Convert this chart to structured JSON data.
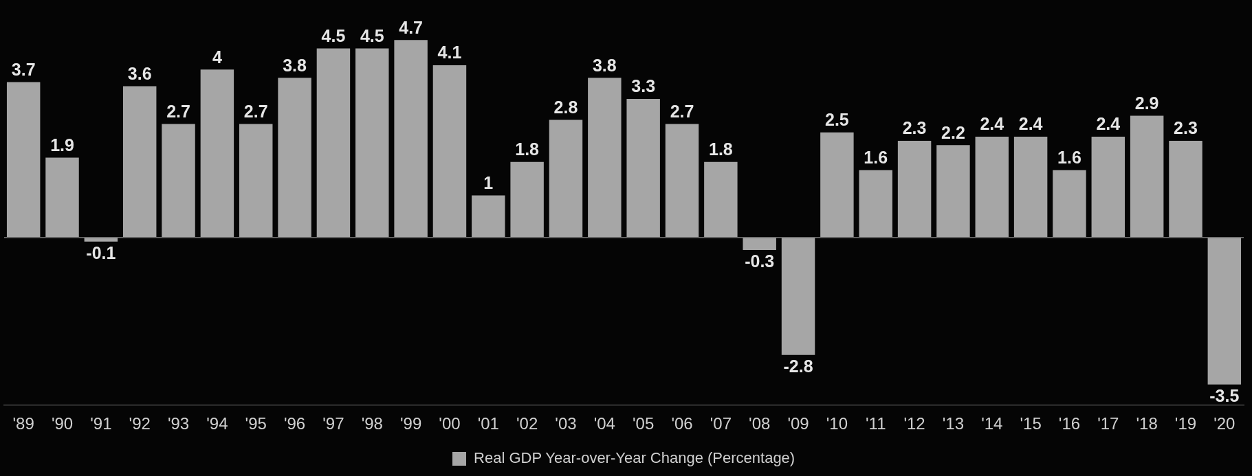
{
  "chart_data": {
    "type": "bar",
    "categories": [
      "'89",
      "'90",
      "'91",
      "'92",
      "'93",
      "'94",
      "'95",
      "'96",
      "'97",
      "'98",
      "'99",
      "'00",
      "'01",
      "'02",
      "'03",
      "'04",
      "'05",
      "'06",
      "'07",
      "'08",
      "'09",
      "'10",
      "'11",
      "'12",
      "'13",
      "'14",
      "'15",
      "'16",
      "'17",
      "'18",
      "'19",
      "'20"
    ],
    "series": [
      {
        "name": "Real GDP Year-over-Year Change (Percentage)",
        "color": "#a6a6a6",
        "values": [
          3.7,
          1.9,
          -0.1,
          3.6,
          2.7,
          4,
          2.7,
          3.8,
          4.5,
          4.5,
          4.7,
          4.1,
          1,
          1.8,
          2.8,
          3.8,
          3.3,
          2.7,
          1.8,
          -0.3,
          -2.8,
          2.5,
          1.6,
          2.3,
          2.2,
          2.4,
          2.4,
          1.6,
          2.4,
          2.9,
          2.3,
          -3.5
        ]
      }
    ],
    "tick_labels": "x",
    "legend": "bottom",
    "data_labels": true,
    "ref_lines": [
      {
        "axis": "y",
        "value": 0,
        "color": "#6e6e6e"
      }
    ]
  }
}
